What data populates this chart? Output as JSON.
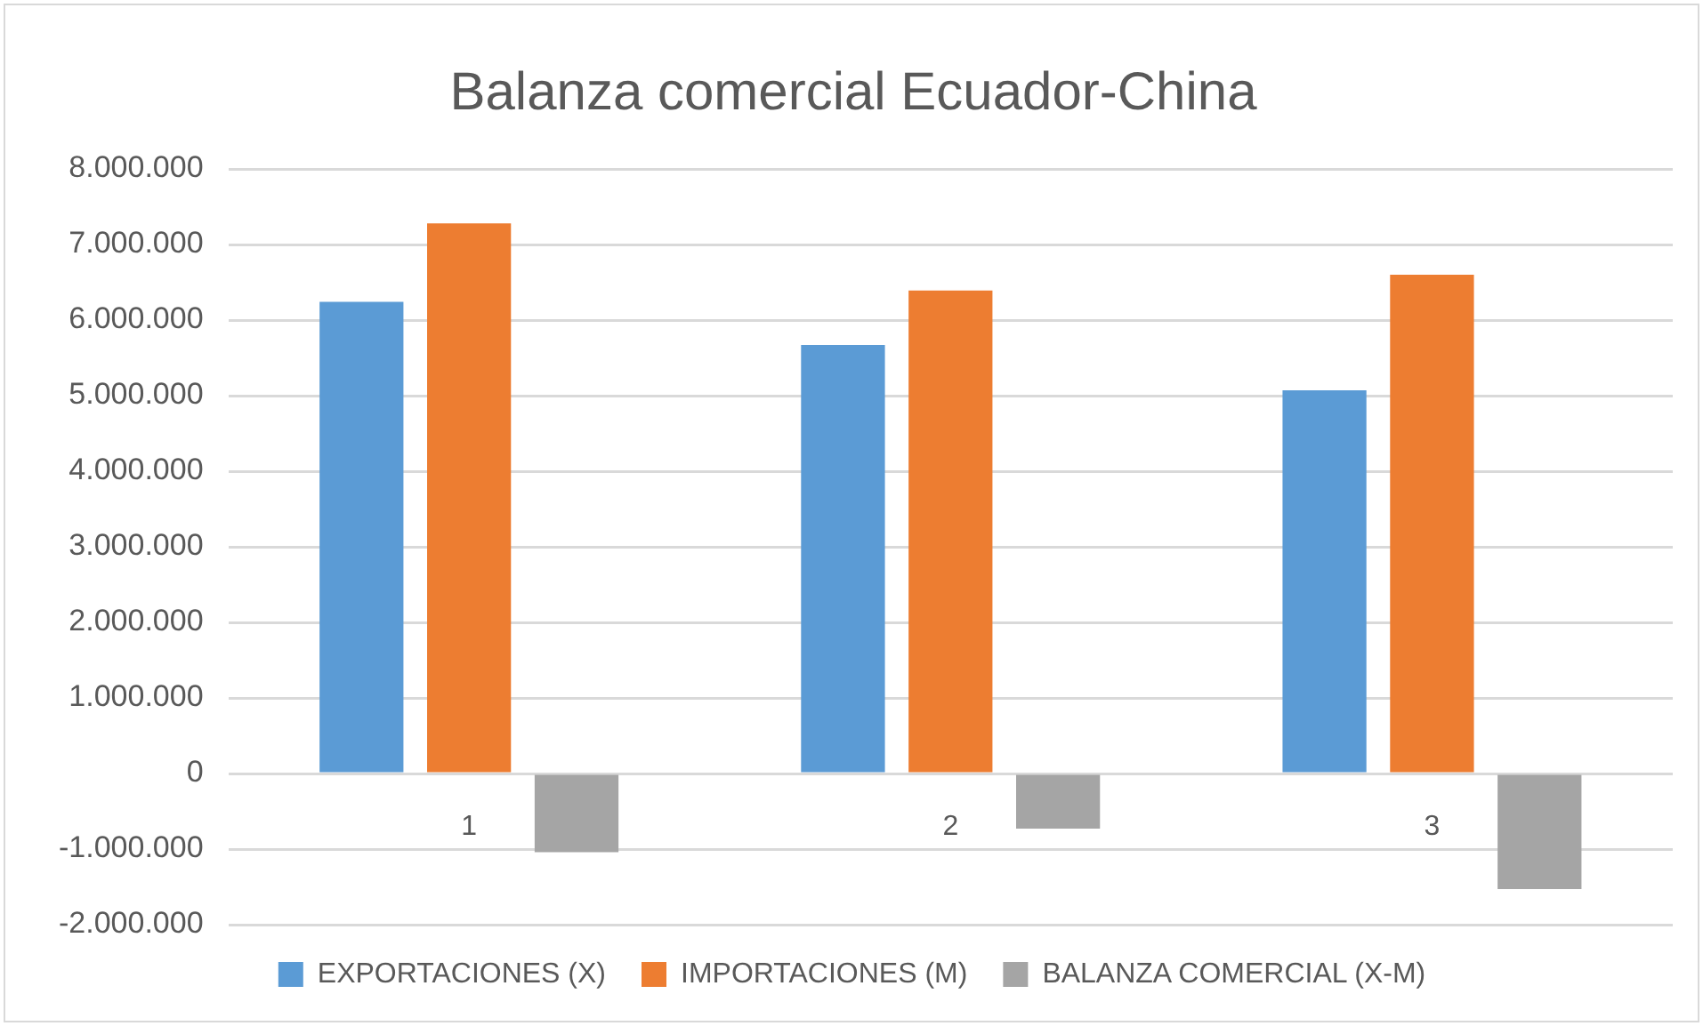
{
  "chart_data": {
    "type": "bar",
    "title": "Balanza comercial Ecuador-China",
    "categories": [
      "1",
      "2",
      "3"
    ],
    "series": [
      {
        "name": "EXPORTACIONES (X)",
        "color": "#5b9bd5",
        "values": [
          6240000,
          5670000,
          5070000
        ]
      },
      {
        "name": "IMPORTACIONES (M)",
        "color": "#ed7d31",
        "values": [
          7280000,
          6390000,
          6600000
        ]
      },
      {
        "name": "BALANZA COMERCIAL (X-M)",
        "color": "#a5a5a5",
        "values": [
          -1040000,
          -730000,
          -1530000
        ]
      }
    ],
    "ylim": [
      -2000000,
      8000000
    ],
    "yticks": [
      {
        "value": -2000000,
        "label": "-2.000.000"
      },
      {
        "value": -1000000,
        "label": "-1.000.000"
      },
      {
        "value": 0,
        "label": "0"
      },
      {
        "value": 1000000,
        "label": "1.000.000"
      },
      {
        "value": 2000000,
        "label": "2.000.000"
      },
      {
        "value": 3000000,
        "label": "3.000.000"
      },
      {
        "value": 4000000,
        "label": "4.000.000"
      },
      {
        "value": 5000000,
        "label": "5.000.000"
      },
      {
        "value": 6000000,
        "label": "6.000.000"
      },
      {
        "value": 7000000,
        "label": "7.000.000"
      },
      {
        "value": 8000000,
        "label": "8.000.000"
      }
    ],
    "grid": "y",
    "legend": "bottom"
  }
}
